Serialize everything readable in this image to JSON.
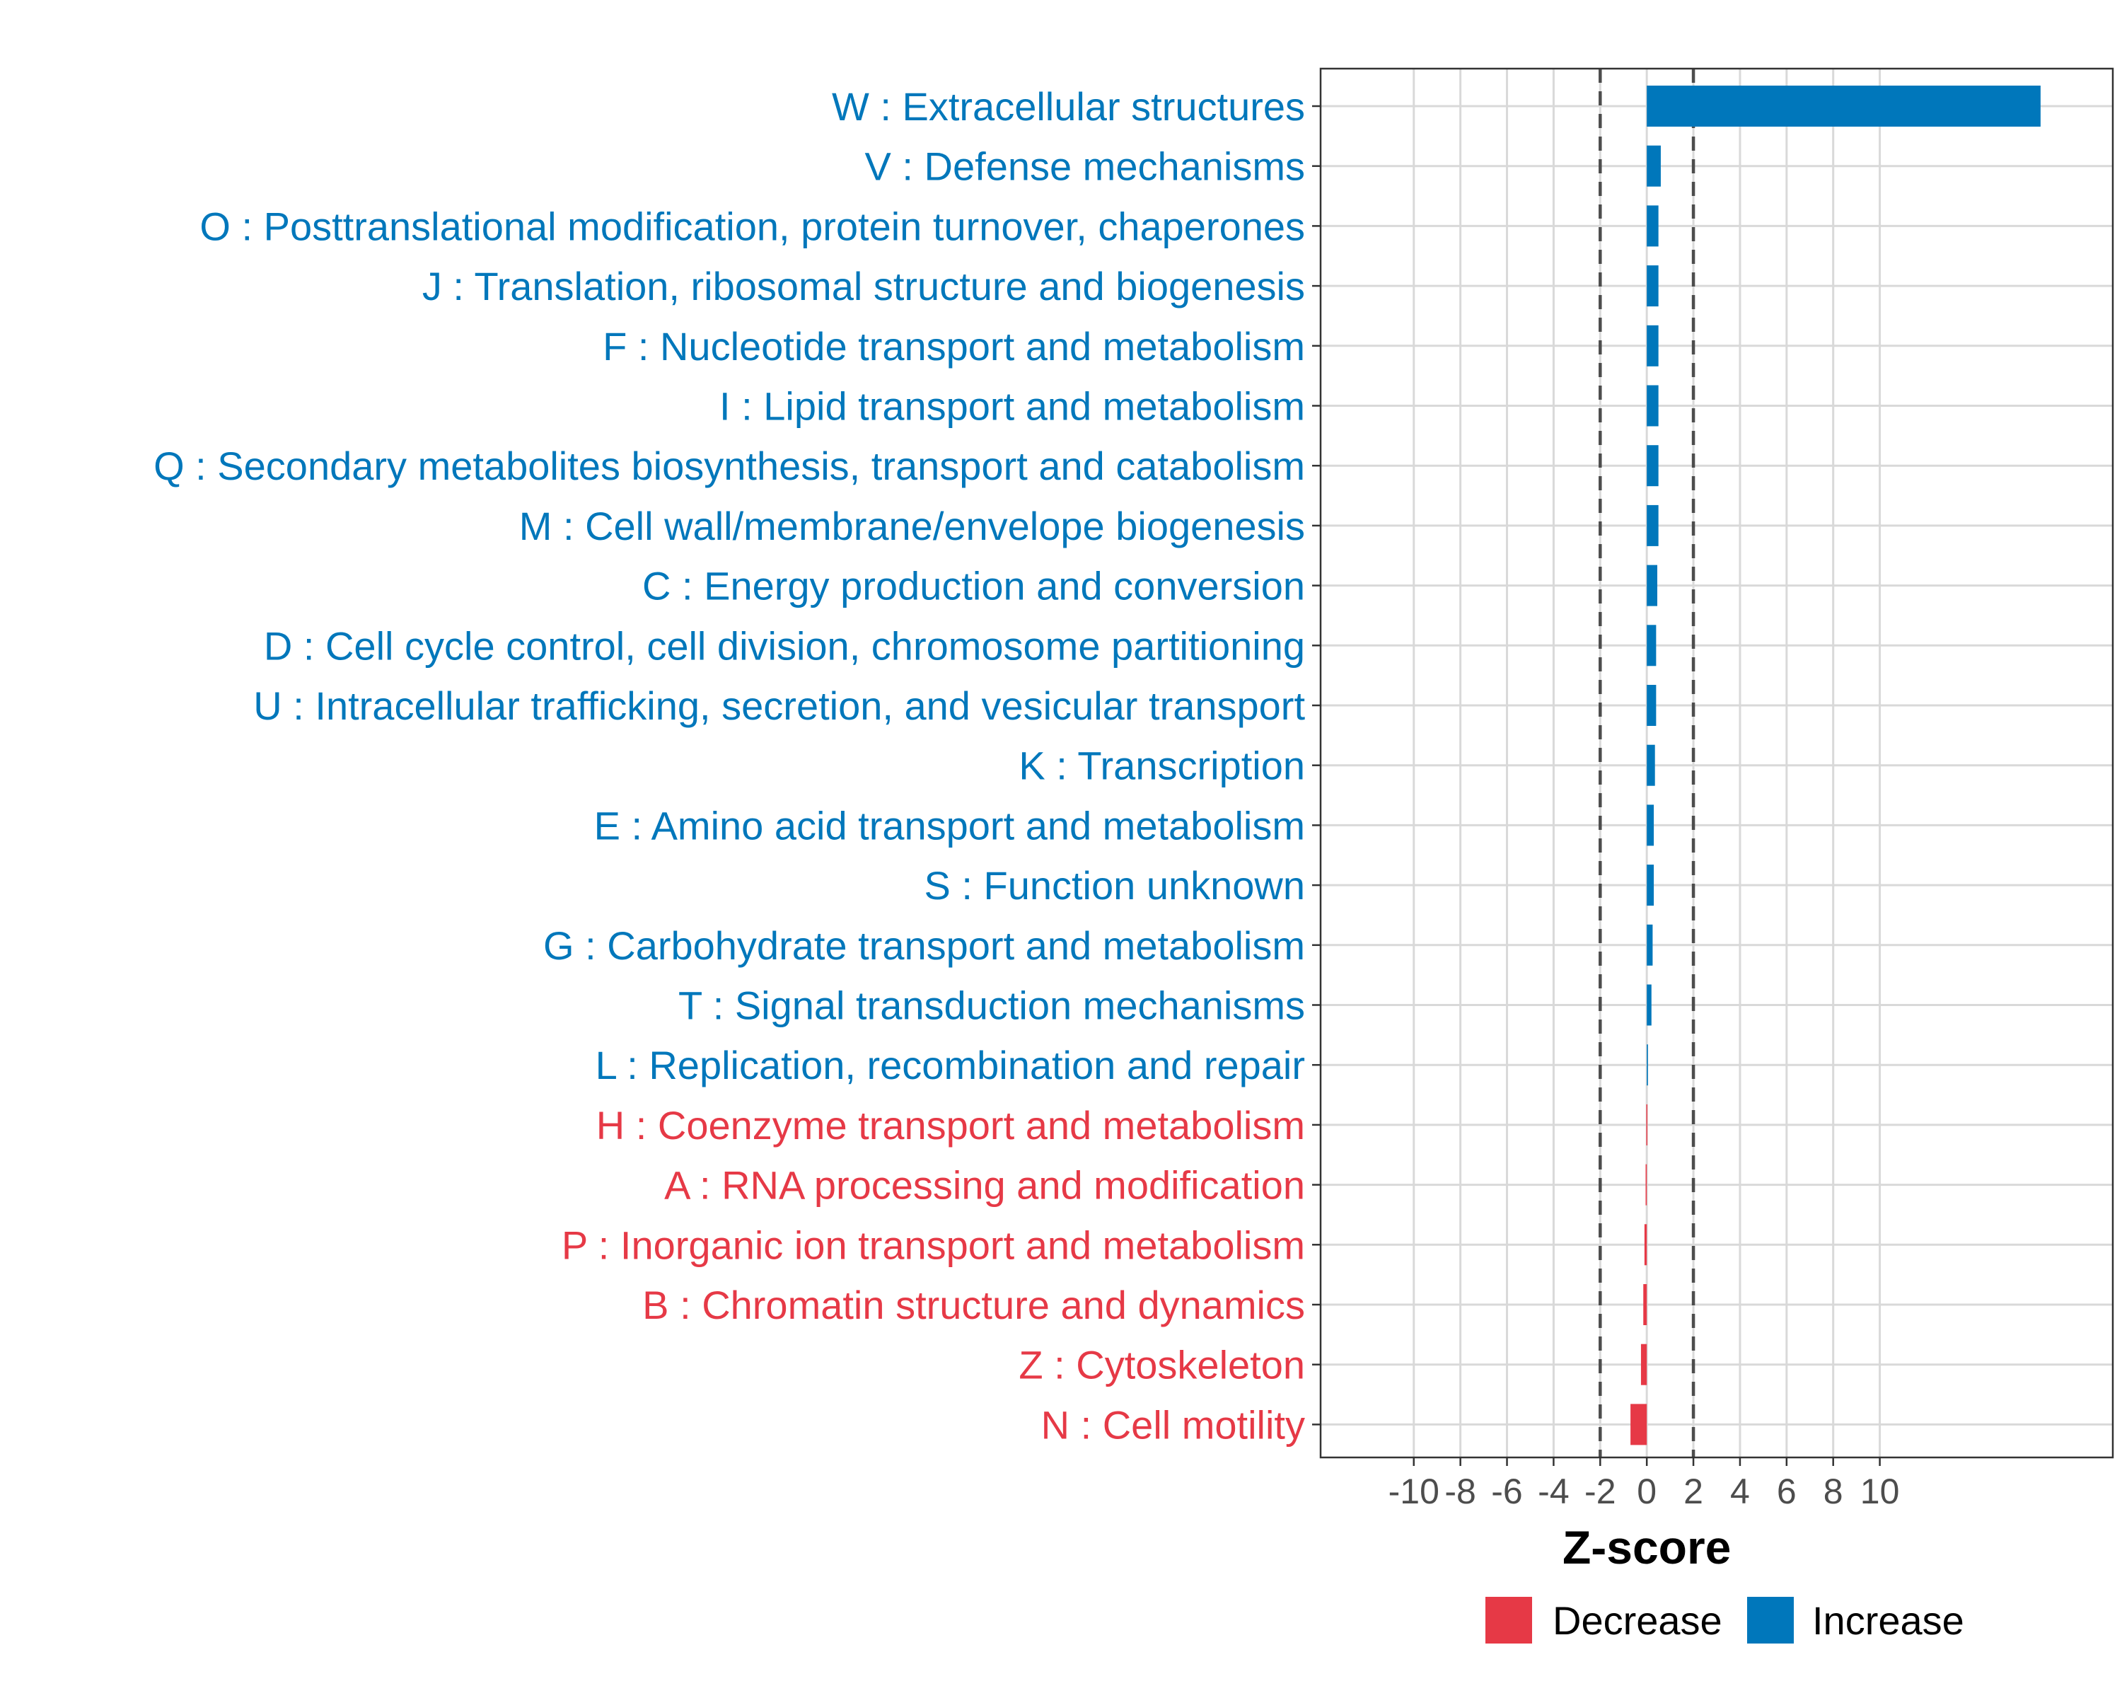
{
  "chart_data": {
    "type": "bar",
    "orientation": "horizontal",
    "xlabel": "Z-score",
    "xlim": [
      -14,
      20
    ],
    "xticks": [
      -10,
      -8,
      -6,
      -4,
      -2,
      0,
      2,
      4,
      6,
      8,
      10
    ],
    "threshold_lines": [
      -2,
      2
    ],
    "grid": true,
    "categories": [
      "W : Extracellular structures",
      "V : Defense mechanisms",
      "O : Posttranslational modification, protein turnover, chaperones",
      "J : Translation, ribosomal structure and biogenesis",
      "F : Nucleotide transport and metabolism",
      "I : Lipid transport and metabolism",
      "Q : Secondary metabolites biosynthesis, transport and catabolism",
      "M : Cell wall/membrane/envelope biogenesis",
      "C : Energy production and conversion",
      "D : Cell cycle control, cell division, chromosome partitioning",
      "U : Intracellular trafficking, secretion, and vesicular transport",
      "K : Transcription",
      "E : Amino acid transport and metabolism",
      "S : Function unknown",
      "G : Carbohydrate transport and metabolism",
      "T : Signal transduction mechanisms",
      "L : Replication, recombination and repair",
      "H : Coenzyme transport and metabolism",
      "A : RNA processing and modification",
      "P : Inorganic ion transport and metabolism",
      "B : Chromatin structure and dynamics",
      "Z : Cytoskeleton",
      "N : Cell motility"
    ],
    "values": [
      16.9,
      0.6,
      0.5,
      0.5,
      0.5,
      0.5,
      0.5,
      0.5,
      0.45,
      0.4,
      0.4,
      0.35,
      0.3,
      0.3,
      0.25,
      0.2,
      0.05,
      -0.02,
      -0.05,
      -0.1,
      -0.15,
      -0.25,
      -0.7
    ],
    "legend": {
      "position": "bottom",
      "entries": [
        {
          "label": "Decrease",
          "color": "#e63946"
        },
        {
          "label": "Increase",
          "color": "#0077bb"
        }
      ]
    },
    "colors": {
      "increase": "#0077bb",
      "decrease": "#e63946",
      "grid": "#d9d9d9",
      "threshold": "#4d4d4d"
    }
  }
}
